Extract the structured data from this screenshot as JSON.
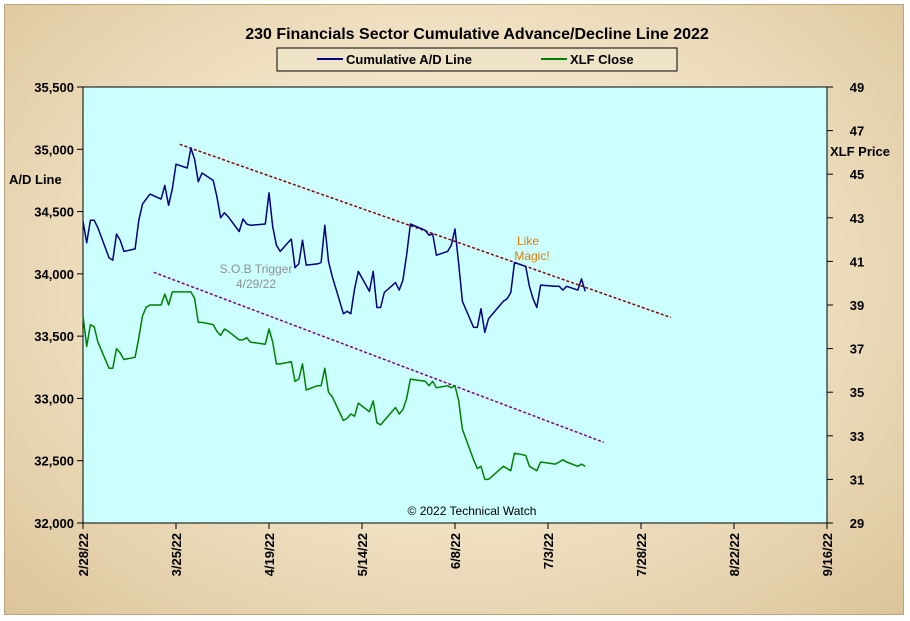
{
  "chart_data": {
    "type": "line",
    "title": "230 Financials  Sector Cumulative  Advance/Decline  Line 2022",
    "left_axis": {
      "label": "A/D Line",
      "range": [
        32000,
        35500
      ],
      "ticks": [
        "35,500",
        "35,000",
        "34,500",
        "34,000",
        "33,500",
        "33,000",
        "32,500",
        "32,000"
      ]
    },
    "right_axis": {
      "label": "XLF Price",
      "range": [
        29,
        49
      ],
      "ticks": [
        "49",
        "47",
        "45",
        "43",
        "41",
        "39",
        "37",
        "35",
        "33",
        "31",
        "29"
      ]
    },
    "x_axis": {
      "ticks": [
        "2/28/22",
        "3/25/22",
        "4/19/22",
        "5/14/22",
        "6/8/22",
        "7/3/22",
        "7/28/22",
        "8/22/22",
        "9/16/22"
      ]
    },
    "legend": {
      "placement": "top-center",
      "entries": [
        "Cumulative A/D Line",
        "XLF Close"
      ]
    },
    "grid": false,
    "colors": {
      "plot_bg": "#ccffff",
      "ad_line": "#000080",
      "xlf_line": "#008000",
      "trend_ad": "#8b0000",
      "trend_xlf": "#800080",
      "annot_orange": "#e07b00",
      "annot_gray": "#909090"
    },
    "series": [
      {
        "name": "Cumulative A/D Line",
        "axis": "left",
        "points": [
          [
            "2022-02-28",
            34420
          ],
          [
            "2022-03-01",
            34250
          ],
          [
            "2022-03-02",
            34430
          ],
          [
            "2022-03-03",
            34430
          ],
          [
            "2022-03-04",
            34370
          ],
          [
            "2022-03-07",
            34130
          ],
          [
            "2022-03-08",
            34110
          ],
          [
            "2022-03-09",
            34320
          ],
          [
            "2022-03-10",
            34270
          ],
          [
            "2022-03-11",
            34180
          ],
          [
            "2022-03-14",
            34200
          ],
          [
            "2022-03-15",
            34430
          ],
          [
            "2022-03-16",
            34560
          ],
          [
            "2022-03-17",
            34600
          ],
          [
            "2022-03-18",
            34640
          ],
          [
            "2022-03-21",
            34600
          ],
          [
            "2022-03-22",
            34710
          ],
          [
            "2022-03-23",
            34550
          ],
          [
            "2022-03-24",
            34680
          ],
          [
            "2022-03-25",
            34880
          ],
          [
            "2022-03-28",
            34850
          ],
          [
            "2022-03-29",
            35010
          ],
          [
            "2022-03-30",
            34920
          ],
          [
            "2022-03-31",
            34740
          ],
          [
            "2022-04-01",
            34810
          ],
          [
            "2022-04-04",
            34750
          ],
          [
            "2022-04-05",
            34620
          ],
          [
            "2022-04-06",
            34450
          ],
          [
            "2022-04-07",
            34490
          ],
          [
            "2022-04-08",
            34460
          ],
          [
            "2022-04-11",
            34340
          ],
          [
            "2022-04-12",
            34440
          ],
          [
            "2022-04-13",
            34400
          ],
          [
            "2022-04-14",
            34390
          ],
          [
            "2022-04-18",
            34400
          ],
          [
            "2022-04-19",
            34650
          ],
          [
            "2022-04-20",
            34380
          ],
          [
            "2022-04-21",
            34230
          ],
          [
            "2022-04-22",
            34180
          ],
          [
            "2022-04-25",
            34280
          ],
          [
            "2022-04-26",
            34050
          ],
          [
            "2022-04-27",
            34080
          ],
          [
            "2022-04-28",
            34270
          ],
          [
            "2022-04-29",
            34070
          ],
          [
            "2022-05-02",
            34080
          ],
          [
            "2022-05-03",
            34090
          ],
          [
            "2022-05-04",
            34390
          ],
          [
            "2022-05-05",
            34100
          ],
          [
            "2022-05-06",
            33980
          ],
          [
            "2022-05-09",
            33680
          ],
          [
            "2022-05-10",
            33700
          ],
          [
            "2022-05-11",
            33680
          ],
          [
            "2022-05-12",
            33880
          ],
          [
            "2022-05-13",
            34020
          ],
          [
            "2022-05-16",
            33860
          ],
          [
            "2022-05-17",
            34020
          ],
          [
            "2022-05-18",
            33730
          ],
          [
            "2022-05-19",
            33730
          ],
          [
            "2022-05-20",
            33850
          ],
          [
            "2022-05-23",
            33930
          ],
          [
            "2022-05-24",
            33870
          ],
          [
            "2022-05-25",
            33950
          ],
          [
            "2022-05-26",
            34150
          ],
          [
            "2022-05-27",
            34400
          ],
          [
            "2022-05-31",
            34350
          ],
          [
            "2022-06-01",
            34310
          ],
          [
            "2022-06-02",
            34320
          ],
          [
            "2022-06-03",
            34150
          ],
          [
            "2022-06-06",
            34180
          ],
          [
            "2022-06-07",
            34230
          ],
          [
            "2022-06-08",
            34360
          ],
          [
            "2022-06-09",
            34080
          ],
          [
            "2022-06-10",
            33780
          ],
          [
            "2022-06-13",
            33570
          ],
          [
            "2022-06-14",
            33570
          ],
          [
            "2022-06-15",
            33720
          ],
          [
            "2022-06-16",
            33530
          ],
          [
            "2022-06-17",
            33640
          ],
          [
            "2022-06-21",
            33780
          ],
          [
            "2022-06-22",
            33800
          ],
          [
            "2022-06-23",
            33850
          ],
          [
            "2022-06-24",
            34090
          ],
          [
            "2022-06-27",
            34060
          ],
          [
            "2022-06-28",
            33900
          ],
          [
            "2022-06-29",
            33800
          ],
          [
            "2022-06-30",
            33730
          ],
          [
            "2022-07-01",
            33910
          ],
          [
            "2022-07-05",
            33900
          ],
          [
            "2022-07-06",
            33900
          ],
          [
            "2022-07-07",
            33870
          ],
          [
            "2022-07-08",
            33900
          ],
          [
            "2022-07-11",
            33870
          ],
          [
            "2022-07-12",
            33960
          ],
          [
            "2022-07-13",
            33860
          ]
        ]
      },
      {
        "name": "XLF Close",
        "axis": "right",
        "points": [
          [
            "2022-02-28",
            38.5
          ],
          [
            "2022-03-01",
            37.1
          ],
          [
            "2022-03-02",
            38.1
          ],
          [
            "2022-03-03",
            38.0
          ],
          [
            "2022-03-04",
            37.3
          ],
          [
            "2022-03-07",
            36.1
          ],
          [
            "2022-03-08",
            36.1
          ],
          [
            "2022-03-09",
            37.0
          ],
          [
            "2022-03-10",
            36.8
          ],
          [
            "2022-03-11",
            36.5
          ],
          [
            "2022-03-14",
            36.6
          ],
          [
            "2022-03-15",
            37.5
          ],
          [
            "2022-03-16",
            38.5
          ],
          [
            "2022-03-17",
            38.9
          ],
          [
            "2022-03-18",
            39.0
          ],
          [
            "2022-03-21",
            39.0
          ],
          [
            "2022-03-22",
            39.5
          ],
          [
            "2022-03-23",
            39.0
          ],
          [
            "2022-03-24",
            39.6
          ],
          [
            "2022-03-25",
            39.6
          ],
          [
            "2022-03-28",
            39.6
          ],
          [
            "2022-03-29",
            39.6
          ],
          [
            "2022-03-30",
            39.3
          ],
          [
            "2022-03-31",
            38.2
          ],
          [
            "2022-04-01",
            38.2
          ],
          [
            "2022-04-04",
            38.1
          ],
          [
            "2022-04-05",
            37.8
          ],
          [
            "2022-04-06",
            37.6
          ],
          [
            "2022-04-07",
            37.9
          ],
          [
            "2022-04-08",
            37.8
          ],
          [
            "2022-04-11",
            37.4
          ],
          [
            "2022-04-12",
            37.4
          ],
          [
            "2022-04-13",
            37.5
          ],
          [
            "2022-04-14",
            37.3
          ],
          [
            "2022-04-18",
            37.2
          ],
          [
            "2022-04-19",
            37.9
          ],
          [
            "2022-04-20",
            37.3
          ],
          [
            "2022-04-21",
            36.3
          ],
          [
            "2022-04-22",
            36.3
          ],
          [
            "2022-04-25",
            36.4
          ],
          [
            "2022-04-26",
            35.5
          ],
          [
            "2022-04-27",
            35.6
          ],
          [
            "2022-04-28",
            36.3
          ],
          [
            "2022-04-29",
            35.1
          ],
          [
            "2022-05-02",
            35.3
          ],
          [
            "2022-05-03",
            35.3
          ],
          [
            "2022-05-04",
            36.1
          ],
          [
            "2022-05-05",
            35.0
          ],
          [
            "2022-05-06",
            34.8
          ],
          [
            "2022-05-09",
            33.7
          ],
          [
            "2022-05-10",
            33.8
          ],
          [
            "2022-05-11",
            34.0
          ],
          [
            "2022-05-12",
            33.9
          ],
          [
            "2022-05-13",
            34.5
          ],
          [
            "2022-05-16",
            34.1
          ],
          [
            "2022-05-17",
            34.6
          ],
          [
            "2022-05-18",
            33.6
          ],
          [
            "2022-05-19",
            33.5
          ],
          [
            "2022-05-20",
            33.7
          ],
          [
            "2022-05-23",
            34.3
          ],
          [
            "2022-05-24",
            34.0
          ],
          [
            "2022-05-25",
            34.2
          ],
          [
            "2022-05-26",
            34.7
          ],
          [
            "2022-05-27",
            35.6
          ],
          [
            "2022-05-31",
            35.5
          ],
          [
            "2022-06-01",
            35.3
          ],
          [
            "2022-06-02",
            35.5
          ],
          [
            "2022-06-03",
            35.2
          ],
          [
            "2022-06-06",
            35.3
          ],
          [
            "2022-06-07",
            35.2
          ],
          [
            "2022-06-08",
            35.3
          ],
          [
            "2022-06-09",
            34.6
          ],
          [
            "2022-06-10",
            33.3
          ],
          [
            "2022-06-13",
            31.9
          ],
          [
            "2022-06-14",
            31.5
          ],
          [
            "2022-06-15",
            31.6
          ],
          [
            "2022-06-16",
            31.0
          ],
          [
            "2022-06-17",
            31.0
          ],
          [
            "2022-06-21",
            31.6
          ],
          [
            "2022-06-22",
            31.5
          ],
          [
            "2022-06-23",
            31.4
          ],
          [
            "2022-06-24",
            32.2
          ],
          [
            "2022-06-27",
            32.1
          ],
          [
            "2022-06-28",
            31.6
          ],
          [
            "2022-06-29",
            31.5
          ],
          [
            "2022-06-30",
            31.4
          ],
          [
            "2022-07-01",
            31.8
          ],
          [
            "2022-07-05",
            31.7
          ],
          [
            "2022-07-06",
            31.8
          ],
          [
            "2022-07-07",
            31.9
          ],
          [
            "2022-07-08",
            31.8
          ],
          [
            "2022-07-11",
            31.6
          ],
          [
            "2022-07-12",
            31.7
          ],
          [
            "2022-07-13",
            31.6
          ]
        ]
      }
    ],
    "trendlines": [
      {
        "axis": "left",
        "from": [
          "2022-03-26",
          35040
        ],
        "to": [
          "2022-08-05",
          33650
        ]
      },
      {
        "axis": "right",
        "from": [
          "2022-03-19",
          40.5
        ],
        "to": [
          "2022-07-18",
          32.7
        ]
      }
    ],
    "annotations": [
      {
        "text": "S.O.B  Trigger",
        "color": "gray"
      },
      {
        "text": "4/29/22",
        "color": "gray"
      },
      {
        "text": "Like",
        "color": "orange"
      },
      {
        "text": "Magic!",
        "color": "orange"
      },
      {
        "text": "© 2022  Technical Watch",
        "color": "black"
      }
    ]
  }
}
